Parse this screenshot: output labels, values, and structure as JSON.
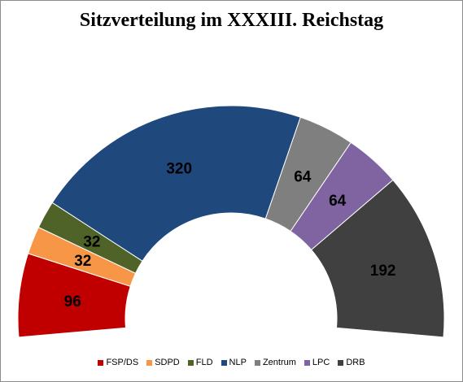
{
  "chart_data": {
    "type": "pie",
    "subtype": "half-donut",
    "title": "Sitzverteilung im XXXIII. Reichstag",
    "categories": [
      "FSP/DS",
      "SDPD",
      "FLD",
      "NLP",
      "Zentrum",
      "LPC",
      "DRB"
    ],
    "values": [
      96,
      32,
      32,
      320,
      64,
      64,
      192
    ],
    "colors": [
      "#c00000",
      "#f79646",
      "#4f6228",
      "#1f497d",
      "#7f7f7f",
      "#8064a2",
      "#404040"
    ],
    "legend_position": "bottom",
    "data_labels": true
  }
}
